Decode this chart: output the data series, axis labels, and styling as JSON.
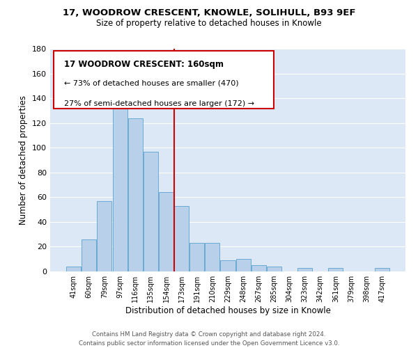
{
  "title": "17, WOODROW CRESCENT, KNOWLE, SOLIHULL, B93 9EF",
  "subtitle": "Size of property relative to detached houses in Knowle",
  "xlabel": "Distribution of detached houses by size in Knowle",
  "ylabel": "Number of detached properties",
  "bar_labels": [
    "41sqm",
    "60sqm",
    "79sqm",
    "97sqm",
    "116sqm",
    "135sqm",
    "154sqm",
    "173sqm",
    "191sqm",
    "210sqm",
    "229sqm",
    "248sqm",
    "267sqm",
    "285sqm",
    "304sqm",
    "323sqm",
    "342sqm",
    "361sqm",
    "379sqm",
    "398sqm",
    "417sqm"
  ],
  "bar_values": [
    4,
    26,
    57,
    142,
    124,
    97,
    64,
    53,
    23,
    23,
    9,
    10,
    5,
    4,
    0,
    3,
    0,
    3,
    0,
    0,
    3
  ],
  "bar_color": "#b8d0ea",
  "bar_edge_color": "#6aaad4",
  "background_color": "#dce8f5",
  "grid_color": "#ffffff",
  "marker_label": "17 WOODROW CRESCENT: 160sqm",
  "annotation_line1": "← 73% of detached houses are smaller (470)",
  "annotation_line2": "27% of semi-detached houses are larger (172) →",
  "marker_line_color": "#cc0000",
  "box_edge_color": "#cc0000",
  "ylim": [
    0,
    180
  ],
  "yticks": [
    0,
    20,
    40,
    60,
    80,
    100,
    120,
    140,
    160,
    180
  ],
  "footer_line1": "Contains HM Land Registry data © Crown copyright and database right 2024.",
  "footer_line2": "Contains public sector information licensed under the Open Government Licence v3.0."
}
